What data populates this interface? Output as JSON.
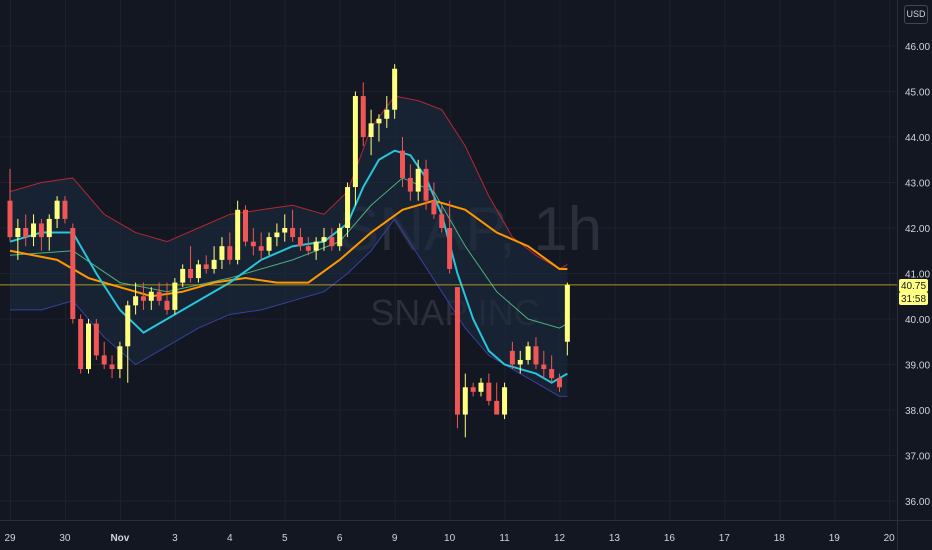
{
  "currency": "USD",
  "watermark": {
    "symbol_interval": "SNAP, 1h",
    "company": "SNAP INC"
  },
  "price_label": "40.75",
  "countdown_label": "31:58",
  "colors": {
    "background": "#131722",
    "grid": "#1e222d",
    "up": "#ffff80",
    "down": "#f05656",
    "ema_fast": "#26c6da",
    "ema_slow": "#ff9800",
    "sma": "#4caf7d",
    "bb_upper": "#b22833",
    "bb_lower": "#3a3fa0",
    "bb_fill": "#1a2a3d",
    "price_line": "#f0c419"
  },
  "chart_data": {
    "type": "candlestick",
    "y_ticks": [
      36,
      37,
      38,
      39,
      40,
      41,
      42,
      43,
      44,
      45,
      46
    ],
    "y_tick_labels": [
      "36.00",
      "37.00",
      "38.00",
      "39.00",
      "40.00",
      "41.00",
      "42.00",
      "43.00",
      "44.00",
      "45.00",
      "46.00"
    ],
    "ylim": [
      35.6,
      46.5
    ],
    "x_ticks": [
      {
        "label": "29",
        "t": 0
      },
      {
        "label": "30",
        "t": 7
      },
      {
        "label": "Nov",
        "t": 14
      },
      {
        "label": "3",
        "t": 21
      },
      {
        "label": "4",
        "t": 28
      },
      {
        "label": "5",
        "t": 35
      },
      {
        "label": "6",
        "t": 42
      },
      {
        "label": "9",
        "t": 49
      },
      {
        "label": "10",
        "t": 56
      },
      {
        "label": "11",
        "t": 63
      },
      {
        "label": "12",
        "t": 70
      },
      {
        "label": "13",
        "t": 77
      },
      {
        "label": "16",
        "t": 84
      },
      {
        "label": "17",
        "t": 91
      },
      {
        "label": "18",
        "t": 98
      },
      {
        "label": "19",
        "t": 105
      },
      {
        "label": "20",
        "t": 112
      }
    ],
    "bold_x_labels": [
      "Nov"
    ],
    "current_price": 40.75,
    "candles": [
      [
        42.6,
        43.3,
        41.7,
        41.8
      ],
      [
        41.8,
        42.2,
        41.3,
        42.0
      ],
      [
        42.0,
        42.3,
        41.6,
        41.8
      ],
      [
        41.8,
        42.3,
        41.6,
        42.1
      ],
      [
        42.1,
        42.2,
        41.5,
        41.8
      ],
      [
        41.8,
        42.3,
        41.5,
        42.2
      ],
      [
        42.2,
        42.7,
        42.0,
        42.6
      ],
      [
        42.6,
        42.7,
        42.1,
        42.2
      ],
      [
        42.0,
        42.1,
        39.9,
        40.0
      ],
      [
        40.0,
        40.1,
        38.8,
        38.9
      ],
      [
        38.9,
        40.0,
        38.8,
        39.9
      ],
      [
        39.9,
        40.0,
        39.1,
        39.2
      ],
      [
        39.2,
        39.5,
        38.9,
        39.0
      ],
      [
        39.0,
        39.2,
        38.7,
        38.9
      ],
      [
        38.9,
        39.5,
        38.7,
        39.4
      ],
      [
        39.4,
        40.4,
        38.6,
        40.3
      ],
      [
        40.3,
        40.8,
        40.1,
        40.5
      ],
      [
        40.5,
        40.8,
        40.2,
        40.4
      ],
      [
        40.4,
        40.7,
        40.2,
        40.6
      ],
      [
        40.6,
        40.8,
        40.3,
        40.4
      ],
      [
        40.4,
        40.8,
        40.1,
        40.2
      ],
      [
        40.2,
        40.9,
        40.1,
        40.8
      ],
      [
        40.8,
        41.2,
        40.7,
        41.1
      ],
      [
        41.1,
        41.6,
        40.8,
        40.9
      ],
      [
        40.9,
        41.3,
        40.8,
        41.2
      ],
      [
        41.2,
        41.4,
        41.0,
        41.1
      ],
      [
        41.1,
        41.6,
        41.0,
        41.3
      ],
      [
        41.3,
        41.8,
        41.1,
        41.6
      ],
      [
        41.6,
        41.9,
        41.2,
        41.3
      ],
      [
        41.3,
        42.6,
        41.2,
        42.4
      ],
      [
        42.4,
        42.5,
        41.6,
        41.7
      ],
      [
        41.7,
        42.0,
        41.4,
        41.6
      ],
      [
        41.6,
        41.9,
        41.3,
        41.5
      ],
      [
        41.5,
        41.9,
        41.4,
        41.8
      ],
      [
        41.8,
        42.1,
        41.6,
        41.9
      ],
      [
        41.9,
        42.3,
        41.7,
        42.0
      ],
      [
        42.0,
        42.4,
        41.7,
        41.8
      ],
      [
        41.8,
        42.0,
        41.5,
        41.6
      ],
      [
        41.6,
        41.8,
        41.4,
        41.5
      ],
      [
        41.5,
        41.8,
        41.3,
        41.7
      ],
      [
        41.7,
        42.0,
        41.5,
        41.8
      ],
      [
        41.8,
        42.0,
        41.5,
        41.6
      ],
      [
        41.6,
        42.1,
        41.5,
        42.0
      ],
      [
        42.0,
        43.0,
        41.8,
        42.9
      ],
      [
        42.9,
        45.0,
        42.5,
        44.9
      ],
      [
        44.9,
        45.2,
        43.8,
        44.0
      ],
      [
        44.0,
        44.6,
        43.6,
        44.3
      ],
      [
        44.3,
        44.5,
        43.9,
        44.4
      ],
      [
        44.4,
        44.9,
        44.2,
        44.6
      ],
      [
        44.6,
        45.6,
        44.4,
        45.5
      ],
      [
        43.7,
        44.0,
        42.9,
        43.1
      ],
      [
        43.1,
        43.4,
        42.6,
        42.8
      ],
      [
        42.8,
        43.5,
        42.6,
        43.3
      ],
      [
        43.3,
        43.5,
        42.4,
        42.6
      ],
      [
        42.6,
        43.0,
        42.2,
        42.3
      ],
      [
        42.3,
        42.5,
        41.9,
        42.0
      ],
      [
        42.0,
        42.6,
        41.0,
        41.1
      ],
      [
        40.7,
        40.7,
        37.6,
        37.9
      ],
      [
        37.9,
        38.8,
        37.4,
        38.5
      ],
      [
        38.5,
        38.6,
        38.3,
        38.4
      ],
      [
        38.4,
        38.7,
        38.3,
        38.6
      ],
      [
        38.6,
        38.8,
        38.1,
        38.2
      ],
      [
        38.2,
        38.6,
        37.9,
        37.9
      ],
      [
        37.9,
        38.6,
        37.8,
        38.5
      ],
      [
        39.3,
        39.5,
        38.9,
        39.0
      ],
      [
        39.0,
        39.3,
        38.8,
        39.1
      ],
      [
        39.1,
        39.5,
        39.0,
        39.4
      ],
      [
        39.4,
        39.6,
        38.9,
        39.0
      ],
      [
        39.0,
        39.3,
        38.7,
        38.9
      ],
      [
        38.9,
        39.2,
        38.6,
        38.7
      ],
      [
        38.7,
        38.8,
        38.4,
        38.5
      ],
      [
        39.5,
        40.8,
        39.2,
        40.75
      ]
    ],
    "ema_fast": [
      [
        0,
        41.7
      ],
      [
        4,
        41.9
      ],
      [
        8,
        41.9
      ],
      [
        11,
        41.0
      ],
      [
        14,
        40.2
      ],
      [
        17,
        39.7
      ],
      [
        20,
        40.0
      ],
      [
        24,
        40.4
      ],
      [
        28,
        40.8
      ],
      [
        32,
        41.3
      ],
      [
        36,
        41.6
      ],
      [
        40,
        41.7
      ],
      [
        43,
        42.1
      ],
      [
        45,
        42.9
      ],
      [
        47,
        43.5
      ],
      [
        49,
        43.7
      ],
      [
        51,
        43.6
      ],
      [
        53,
        43.1
      ],
      [
        55,
        42.3
      ],
      [
        57,
        41.0
      ],
      [
        59,
        40.0
      ],
      [
        61,
        39.3
      ],
      [
        63,
        39.0
      ],
      [
        65,
        38.9
      ],
      [
        67,
        38.8
      ],
      [
        69,
        38.6
      ],
      [
        71,
        38.8
      ]
    ],
    "ema_slow": [
      [
        0,
        41.5
      ],
      [
        6,
        41.3
      ],
      [
        10,
        40.9
      ],
      [
        14,
        40.7
      ],
      [
        18,
        40.5
      ],
      [
        22,
        40.6
      ],
      [
        26,
        40.8
      ],
      [
        30,
        40.9
      ],
      [
        34,
        40.8
      ],
      [
        38,
        40.8
      ],
      [
        42,
        41.3
      ],
      [
        46,
        41.9
      ],
      [
        50,
        42.4
      ],
      [
        54,
        42.6
      ],
      [
        58,
        42.4
      ],
      [
        62,
        41.9
      ],
      [
        66,
        41.6
      ],
      [
        70,
        41.1
      ],
      [
        71,
        41.1
      ]
    ],
    "sma": [
      [
        0,
        41.4
      ],
      [
        8,
        41.5
      ],
      [
        14,
        40.8
      ],
      [
        20,
        40.6
      ],
      [
        28,
        40.9
      ],
      [
        36,
        41.3
      ],
      [
        42,
        41.7
      ],
      [
        46,
        42.5
      ],
      [
        50,
        43.1
      ],
      [
        54,
        42.8
      ],
      [
        58,
        41.6
      ],
      [
        62,
        40.6
      ],
      [
        66,
        40.0
      ],
      [
        70,
        39.8
      ],
      [
        71,
        39.9
      ]
    ],
    "bb_upper": [
      [
        0,
        42.8
      ],
      [
        4,
        43.0
      ],
      [
        8,
        43.1
      ],
      [
        12,
        42.3
      ],
      [
        16,
        41.9
      ],
      [
        20,
        41.7
      ],
      [
        24,
        42.0
      ],
      [
        28,
        42.3
      ],
      [
        32,
        42.4
      ],
      [
        36,
        42.5
      ],
      [
        40,
        42.3
      ],
      [
        43,
        42.8
      ],
      [
        46,
        44.2
      ],
      [
        49,
        44.9
      ],
      [
        52,
        44.8
      ],
      [
        55,
        44.6
      ],
      [
        58,
        43.8
      ],
      [
        61,
        42.7
      ],
      [
        64,
        41.8
      ],
      [
        67,
        41.4
      ],
      [
        70,
        41.1
      ],
      [
        71,
        41.2
      ]
    ],
    "bb_lower": [
      [
        0,
        40.2
      ],
      [
        4,
        40.2
      ],
      [
        8,
        40.4
      ],
      [
        12,
        39.6
      ],
      [
        16,
        39.0
      ],
      [
        20,
        39.4
      ],
      [
        24,
        39.8
      ],
      [
        28,
        40.1
      ],
      [
        32,
        40.2
      ],
      [
        36,
        40.4
      ],
      [
        40,
        40.6
      ],
      [
        43,
        41.0
      ],
      [
        46,
        41.5
      ],
      [
        49,
        42.2
      ],
      [
        52,
        41.4
      ],
      [
        55,
        40.6
      ],
      [
        58,
        39.8
      ],
      [
        61,
        39.2
      ],
      [
        64,
        38.9
      ],
      [
        67,
        38.6
      ],
      [
        70,
        38.3
      ],
      [
        71,
        38.3
      ]
    ]
  }
}
